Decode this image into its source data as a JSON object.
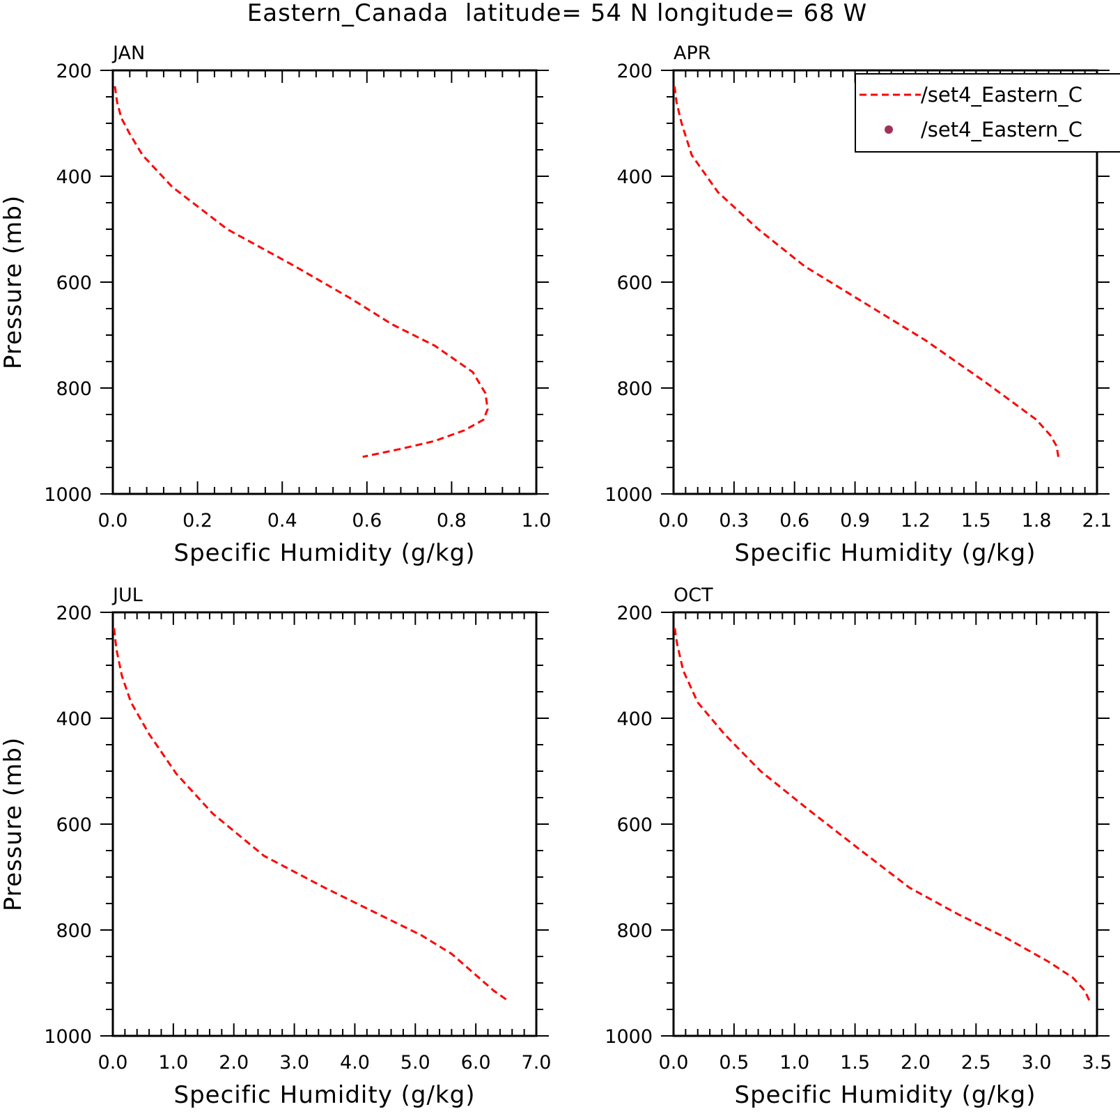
{
  "title": "Eastern_Canada  latitude= 54 N longitude= 68 W",
  "colors": {
    "series_line": "#ff0000",
    "series_marker": "#a0325a",
    "axes": "#000000",
    "background": "#ffffff"
  },
  "legend": {
    "placement": "top-right",
    "entries": [
      {
        "label": "/set4_Eastern_C",
        "style": "dashed-line",
        "color": "#ff0000"
      },
      {
        "label": "/set4_Eastern_C",
        "style": "dot-marker",
        "color": "#a0325a"
      }
    ]
  },
  "chart_data": [
    {
      "type": "line",
      "panel": "JAN",
      "xlabel": "Specific Humidity (g/kg)",
      "ylabel": "Pressure (mb)",
      "xlim": [
        0.0,
        1.0
      ],
      "ylim": [
        1000,
        200
      ],
      "y_reversed": true,
      "xticks": [
        "0.0",
        "0.2",
        "0.4",
        "0.6",
        "0.8",
        "1.0"
      ],
      "yticks": [
        "200",
        "400",
        "600",
        "800",
        "1000"
      ],
      "series": [
        {
          "style": "dashed",
          "color": "#ff0000",
          "x": [
            0.005,
            0.01,
            0.02,
            0.04,
            0.07,
            0.14,
            0.27,
            0.43,
            0.56,
            0.66,
            0.76,
            0.85,
            0.88,
            0.885,
            0.875,
            0.83,
            0.76,
            0.68,
            0.59
          ],
          "y": [
            230,
            260,
            290,
            320,
            360,
            420,
            500,
            570,
            630,
            680,
            720,
            770,
            810,
            840,
            860,
            880,
            900,
            915,
            930
          ]
        }
      ]
    },
    {
      "type": "line",
      "panel": "APR",
      "xlabel": "Specific Humidity (g/kg)",
      "ylabel": "",
      "xlim": [
        0.0,
        2.1
      ],
      "ylim": [
        1000,
        200
      ],
      "y_reversed": true,
      "xticks": [
        "0.0",
        "0.3",
        "0.6",
        "0.9",
        "1.2",
        "1.5",
        "1.8",
        "2.1"
      ],
      "yticks": [
        "200",
        "400",
        "600",
        "800",
        "1000"
      ],
      "series": [
        {
          "style": "dashed",
          "color": "#ff0000",
          "x": [
            0.005,
            0.015,
            0.04,
            0.09,
            0.22,
            0.42,
            0.65,
            0.95,
            1.25,
            1.55,
            1.8,
            1.87,
            1.9,
            1.91
          ],
          "y": [
            230,
            260,
            300,
            360,
            430,
            500,
            570,
            640,
            710,
            790,
            860,
            890,
            910,
            935
          ]
        }
      ]
    },
    {
      "type": "line",
      "panel": "JUL",
      "xlabel": "Specific Humidity (g/kg)",
      "ylabel": "Pressure (mb)",
      "xlim": [
        0.0,
        7.0
      ],
      "ylim": [
        1000,
        200
      ],
      "y_reversed": true,
      "xticks": [
        "0.0",
        "1.0",
        "2.0",
        "3.0",
        "4.0",
        "5.0",
        "6.0",
        "7.0"
      ],
      "yticks": [
        "200",
        "400",
        "600",
        "800",
        "1000"
      ],
      "series": [
        {
          "style": "dashed",
          "color": "#ff0000",
          "x": [
            0.02,
            0.06,
            0.15,
            0.3,
            0.6,
            1.05,
            1.65,
            2.5,
            3.5,
            4.3,
            5.1,
            5.6,
            6.0,
            6.3,
            6.55
          ],
          "y": [
            230,
            270,
            320,
            370,
            430,
            505,
            580,
            660,
            720,
            765,
            810,
            845,
            885,
            915,
            935
          ]
        }
      ]
    },
    {
      "type": "line",
      "panel": "OCT",
      "xlabel": "Specific Humidity (g/kg)",
      "ylabel": "",
      "xlim": [
        0.0,
        3.5
      ],
      "ylim": [
        1000,
        200
      ],
      "y_reversed": true,
      "xticks": [
        "0.0",
        "0.5",
        "1.0",
        "1.5",
        "2.0",
        "2.5",
        "3.0",
        "3.5"
      ],
      "yticks": [
        "200",
        "400",
        "600",
        "800",
        "1000"
      ],
      "series": [
        {
          "style": "dashed",
          "color": "#ff0000",
          "x": [
            0.01,
            0.03,
            0.08,
            0.2,
            0.42,
            0.72,
            1.1,
            1.55,
            1.95,
            2.35,
            2.75,
            3.1,
            3.3,
            3.4,
            3.45
          ],
          "y": [
            230,
            260,
            310,
            370,
            430,
            500,
            570,
            650,
            720,
            770,
            815,
            860,
            890,
            915,
            940
          ]
        }
      ]
    }
  ]
}
